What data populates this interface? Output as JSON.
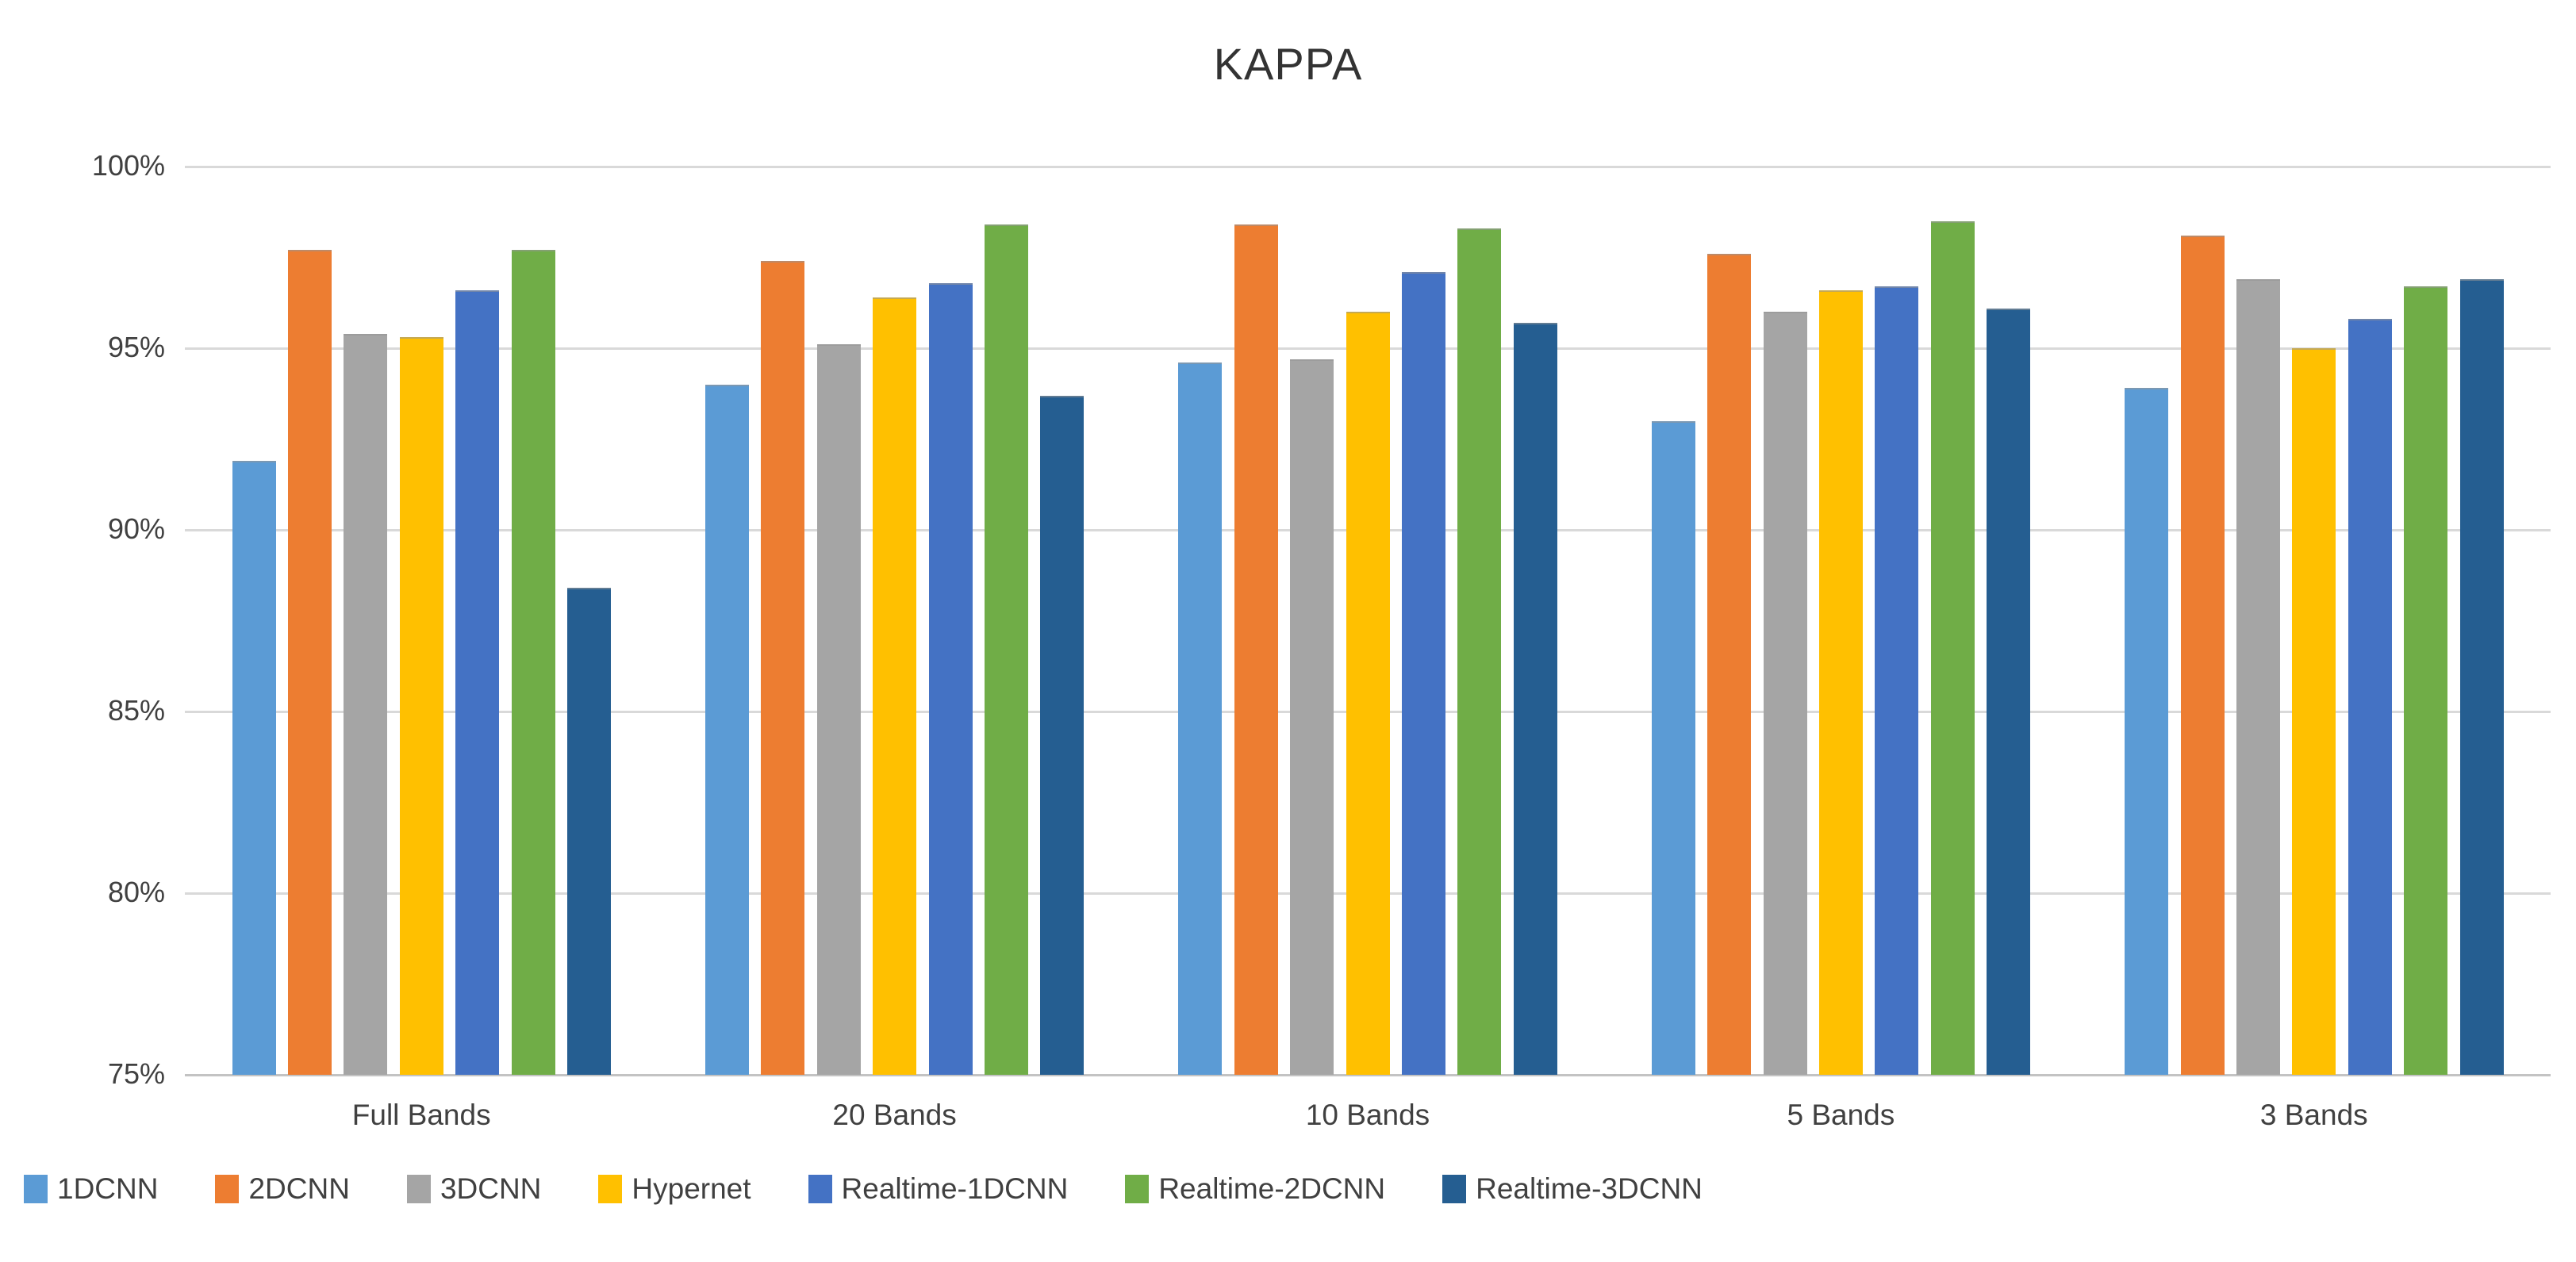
{
  "title": "KAPPA",
  "chart_data": {
    "type": "bar",
    "title": "KAPPA",
    "categories": [
      "Full Bands",
      "20 Bands",
      "10 Bands",
      "5 Bands",
      "3 Bands"
    ],
    "series": [
      {
        "name": "1DCNN",
        "color": "#5B9BD5",
        "values": [
          91.9,
          94.0,
          94.6,
          93.0,
          93.9
        ]
      },
      {
        "name": "2DCNN",
        "color": "#ED7D31",
        "values": [
          97.7,
          97.4,
          98.4,
          97.6,
          98.1
        ]
      },
      {
        "name": "3DCNN",
        "color": "#A5A5A5",
        "values": [
          95.4,
          95.1,
          94.7,
          96.0,
          96.9
        ]
      },
      {
        "name": "Hypernet",
        "color": "#FFC000",
        "values": [
          95.3,
          96.4,
          96.0,
          96.6,
          95.0
        ]
      },
      {
        "name": "Realtime-1DCNN",
        "color": "#4472C4",
        "values": [
          96.6,
          96.8,
          97.1,
          96.7,
          95.8
        ]
      },
      {
        "name": "Realtime-2DCNN",
        "color": "#70AD47",
        "values": [
          97.7,
          98.4,
          98.3,
          98.5,
          96.7
        ]
      },
      {
        "name": "Realtime-3DCNN",
        "color": "#255E91",
        "values": [
          88.4,
          93.7,
          95.7,
          96.1,
          96.9
        ]
      }
    ],
    "xlabel": "",
    "ylabel": "",
    "ylim": [
      75,
      100
    ],
    "ytick_step": 5,
    "ytick_labels": [
      "75%",
      "80%",
      "85%",
      "90%",
      "95%",
      "100%"
    ],
    "grid": true,
    "gridline_color": "#D9D9D9",
    "axis_line_color": "#C3C3C3",
    "text_color": "#404040",
    "legend_position": "bottom-left"
  }
}
